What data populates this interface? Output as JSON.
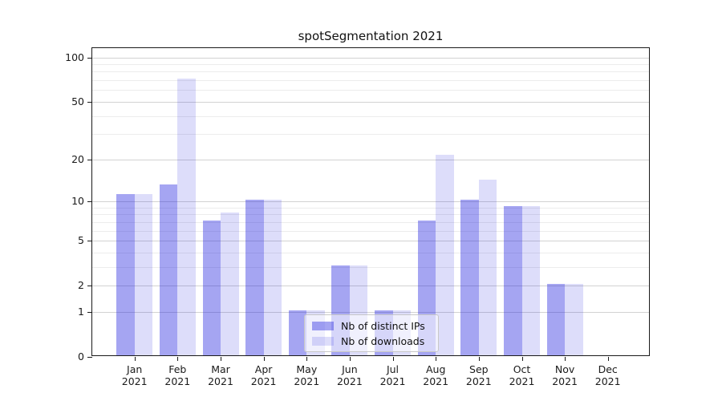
{
  "title": "spotSegmentation 2021",
  "colors": {
    "bar_base": "#1e1ede",
    "bar_alpha_ips": 0.4,
    "bar_alpha_downloads": 0.15,
    "grid_major": "#d2d2d2",
    "grid_minor": "#ececec",
    "axis": "#1a1a1a"
  },
  "legend": {
    "items": [
      {
        "label": "Nb of distinct IPs",
        "color": "#1e1ede",
        "alpha": 0.4
      },
      {
        "label": "Nb of downloads",
        "color": "#1e1ede",
        "alpha": 0.15
      }
    ]
  },
  "x_axis": {
    "ticks": [
      {
        "month": "Jan",
        "year": "2021"
      },
      {
        "month": "Feb",
        "year": "2021"
      },
      {
        "month": "Mar",
        "year": "2021"
      },
      {
        "month": "Apr",
        "year": "2021"
      },
      {
        "month": "May",
        "year": "2021"
      },
      {
        "month": "Jun",
        "year": "2021"
      },
      {
        "month": "Jul",
        "year": "2021"
      },
      {
        "month": "Aug",
        "year": "2021"
      },
      {
        "month": "Sep",
        "year": "2021"
      },
      {
        "month": "Oct",
        "year": "2021"
      },
      {
        "month": "Nov",
        "year": "2021"
      },
      {
        "month": "Dec",
        "year": "2021"
      }
    ]
  },
  "chart_data": {
    "type": "bar",
    "title": "spotSegmentation 2021",
    "categories": [
      "Jan 2021",
      "Feb 2021",
      "Mar 2021",
      "Apr 2021",
      "May 2021",
      "Jun 2021",
      "Jul 2021",
      "Aug 2021",
      "Sep 2021",
      "Oct 2021",
      "Nov 2021",
      "Dec 2021"
    ],
    "series": [
      {
        "name": "Nb of distinct IPs",
        "color": "#1e1ede",
        "alpha": 0.4,
        "values": [
          11,
          13,
          7,
          10,
          1,
          3,
          1,
          7,
          10,
          9,
          2,
          0
        ]
      },
      {
        "name": "Nb of downloads",
        "color": "#1e1ede",
        "alpha": 0.15,
        "values": [
          11,
          70,
          8,
          10,
          1,
          3,
          1,
          21,
          14,
          9,
          2,
          0
        ]
      }
    ],
    "xlabel": "",
    "ylabel": "",
    "yscale": "log1p",
    "ylim": [
      0,
      115
    ],
    "yticks": [
      0,
      1,
      2,
      5,
      10,
      20,
      50,
      100
    ],
    "yminorticks": [
      3,
      4,
      6,
      7,
      8,
      9,
      30,
      40,
      60,
      70,
      80,
      90
    ],
    "grid": true,
    "legend_position": "lower center"
  }
}
